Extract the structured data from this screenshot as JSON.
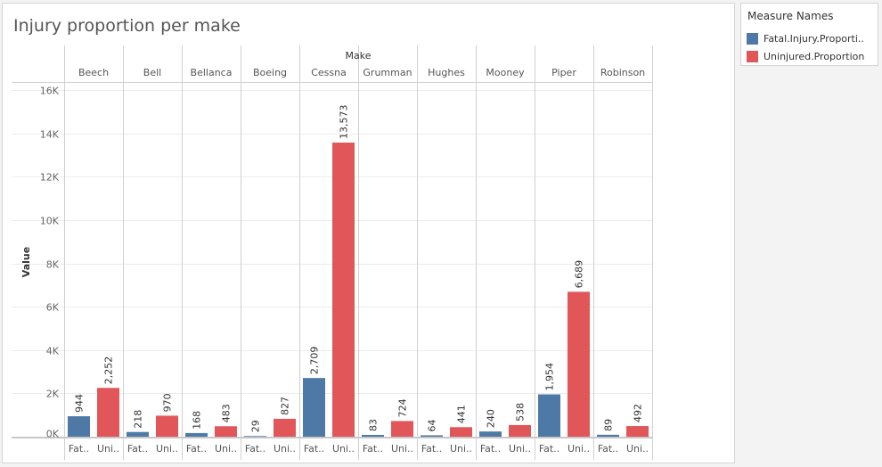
{
  "title": "Injury proportion per make",
  "legend": {
    "title": "Measure Names",
    "items": [
      {
        "label": "Fatal.Injury.Proporti..",
        "color": "#4e79a7"
      },
      {
        "label": "Uninjured.Proportion",
        "color": "#e15759"
      }
    ]
  },
  "chart_data": {
    "type": "bar",
    "title": "Injury proportion per make",
    "column_header": "Make",
    "ylabel": "Value",
    "ylim": [
      0,
      16000
    ],
    "yticks": [
      0,
      2000,
      4000,
      6000,
      8000,
      10000,
      12000,
      14000,
      16000
    ],
    "ytick_labels": [
      "0K",
      "2K",
      "4K",
      "6K",
      "8K",
      "10K",
      "12K",
      "14K",
      "16K"
    ],
    "x_tick_labels": [
      "Fat..",
      "Uni.."
    ],
    "grid": true,
    "legend_position": "right",
    "categories": [
      "Beech",
      "Bell",
      "Bellanca",
      "Boeing",
      "Cessna",
      "Grumman",
      "Hughes",
      "Mooney",
      "Piper",
      "Robinson"
    ],
    "series": [
      {
        "name": "Fatal.Injury.Proporti..",
        "color": "#4e79a7",
        "values": [
          944,
          218,
          168,
          29,
          2709,
          83,
          64,
          240,
          1954,
          89
        ],
        "labels": [
          "944",
          "218",
          "168",
          "29",
          "2,709",
          "83",
          "64",
          "240",
          "1,954",
          "89"
        ]
      },
      {
        "name": "Uninjured.Proportion",
        "color": "#e15759",
        "values": [
          2252,
          970,
          483,
          827,
          13573,
          724,
          441,
          538,
          6689,
          492
        ],
        "labels": [
          "2,252",
          "970",
          "483",
          "827",
          "13,573",
          "724",
          "441",
          "538",
          "6,689",
          "492"
        ]
      }
    ]
  }
}
